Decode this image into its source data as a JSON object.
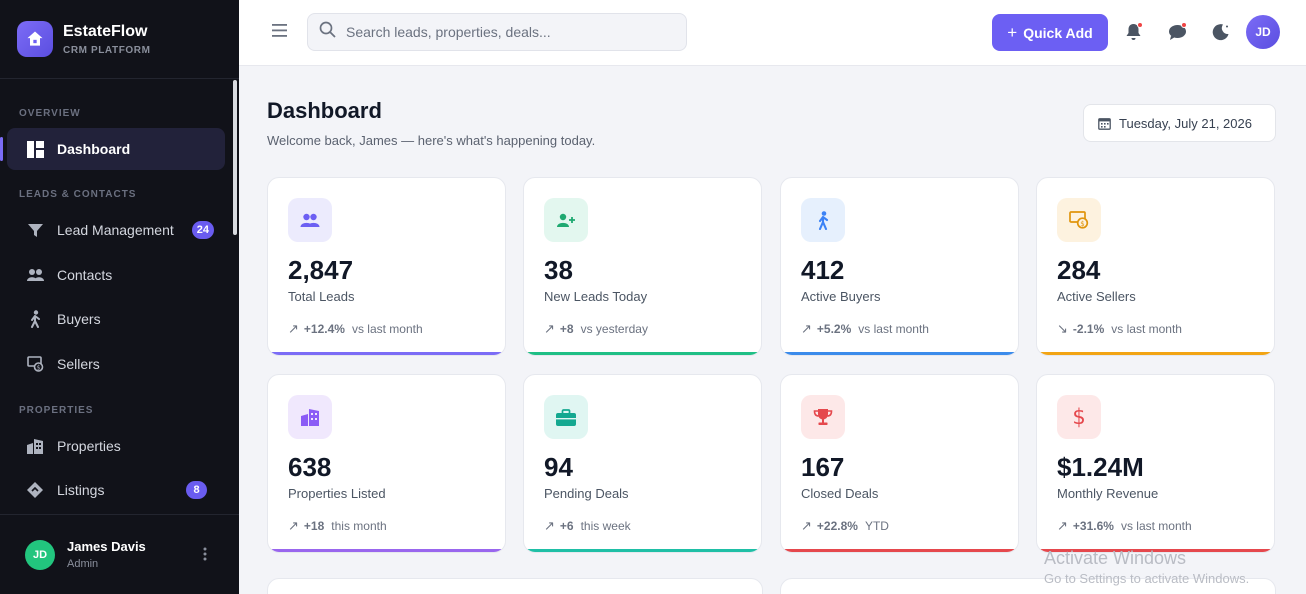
{
  "brand": {
    "name": "EstateFlow",
    "subtitle": "CRM PLATFORM"
  },
  "sidebar": {
    "sections": [
      "OVERVIEW",
      "LEADS & CONTACTS",
      "PROPERTIES"
    ],
    "items": [
      {
        "label": "Dashboard",
        "icon": "dashboard-icon",
        "active": true
      },
      {
        "label": "Lead Management",
        "icon": "funnel-icon",
        "badge": "24"
      },
      {
        "label": "Contacts",
        "icon": "contacts-icon"
      },
      {
        "label": "Buyers",
        "icon": "walking-person-icon"
      },
      {
        "label": "Sellers",
        "icon": "seller-money-icon"
      },
      {
        "label": "Properties",
        "icon": "building-icon"
      },
      {
        "label": "Listings",
        "icon": "tag-icon",
        "badge": "8"
      }
    ]
  },
  "user": {
    "initials": "JD",
    "name": "James Davis",
    "role": "Admin"
  },
  "header": {
    "search_placeholder": "Search leads, properties, deals...",
    "quick_add_label": "Quick Add",
    "avatar_initials": "JD"
  },
  "main": {
    "title": "Dashboard",
    "subtitle": "Welcome back, James — here's what's happening today.",
    "date": "Tuesday, July 21, 2026"
  },
  "cards": [
    {
      "value": "2,847",
      "label": "Total Leads",
      "change": "+12.4%",
      "period": "vs last month",
      "trend": "up",
      "accent": "#7b6cf6",
      "icon_bg": "#ecebfd",
      "icon": "users-icon"
    },
    {
      "value": "38",
      "label": "New Leads Today",
      "change": "+8",
      "period": "vs yesterday",
      "trend": "up",
      "accent": "#1fbf86",
      "icon_bg": "#e3f7ef",
      "icon": "add-user-icon"
    },
    {
      "value": "412",
      "label": "Active Buyers",
      "change": "+5.2%",
      "period": "vs last month",
      "trend": "up",
      "accent": "#3b8beb",
      "icon_bg": "#e6f0fd",
      "icon": "walking-person-icon"
    },
    {
      "value": "284",
      "label": "Active Sellers",
      "change": "-2.1%",
      "period": "vs last month",
      "trend": "down",
      "accent": "#f2a414",
      "icon_bg": "#fdf2df",
      "icon": "seller-money-icon"
    },
    {
      "value": "638",
      "label": "Properties Listed",
      "change": "+18",
      "period": "this month",
      "trend": "up",
      "accent": "#9966ee",
      "icon_bg": "#f0e8fd",
      "icon": "building-icon"
    },
    {
      "value": "94",
      "label": "Pending Deals",
      "change": "+6",
      "period": "this week",
      "trend": "up",
      "accent": "#1fbfa6",
      "icon_bg": "#e0f6f2",
      "icon": "briefcase-icon"
    },
    {
      "value": "167",
      "label": "Closed Deals",
      "change": "+22.8%",
      "period": "YTD",
      "trend": "up",
      "accent": "#e5484d",
      "icon_bg": "#fde8e8",
      "icon": "trophy-icon"
    },
    {
      "value": "$1.24M",
      "label": "Monthly Revenue",
      "change": "+31.6%",
      "period": "vs last month",
      "trend": "up",
      "accent": "#e5484d",
      "icon_bg": "#fde8e8",
      "icon": "dollar-icon"
    }
  ],
  "watermark": {
    "line1": "Activate Windows",
    "line2": "Go to Settings to activate Windows."
  }
}
